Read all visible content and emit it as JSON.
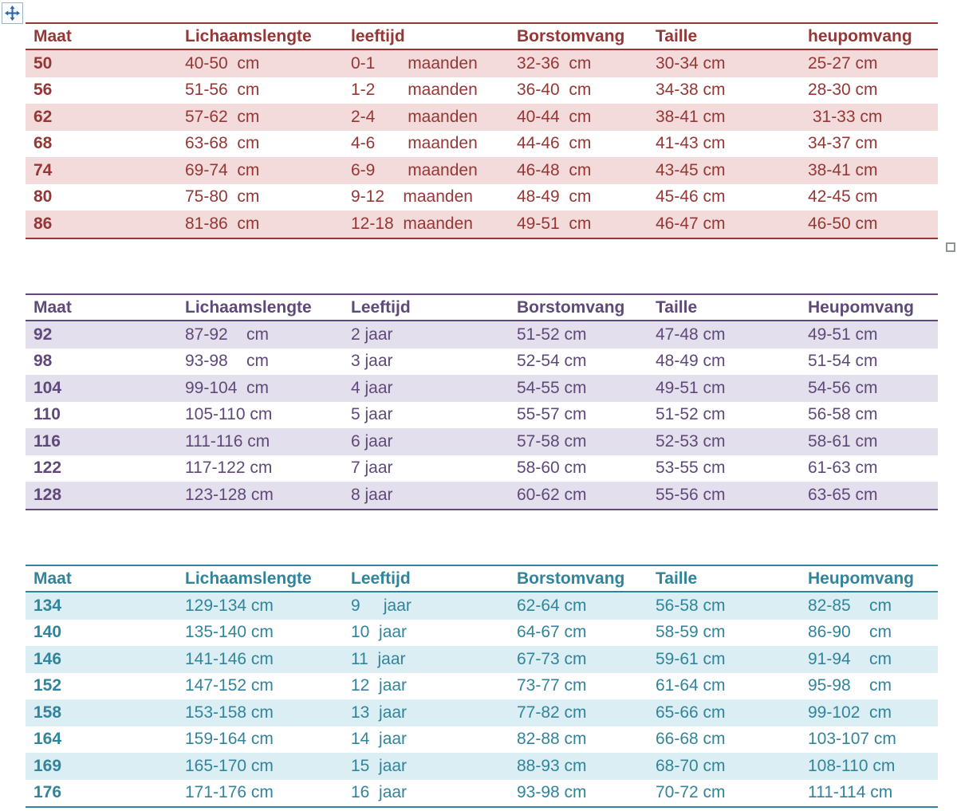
{
  "controls": {
    "move_handle_icon": "move-cross-icon",
    "move_icon_color": "#2e66a4",
    "text_cursor_color": "#101010",
    "resize_handle_border": "#8f9496"
  },
  "tables": [
    {
      "theme": {
        "accent": "#953735",
        "band_bg": "#f2dbda"
      },
      "headers": [
        "Maat",
        "Lichaamslengte",
        "leeftijd",
        "Borstomvang",
        "Taille",
        "heupomvang"
      ],
      "rows": [
        [
          "50",
          "40-50  cm",
          "0-1       maanden",
          "32-36  cm",
          "30-34 cm",
          "25-27 cm"
        ],
        [
          "56",
          "51-56  cm",
          "1-2       maanden",
          "36-40  cm",
          "34-38 cm",
          "28-30 cm"
        ],
        [
          "62",
          "57-62  cm",
          "2-4       maanden",
          "40-44  cm",
          "38-41 cm",
          " 31-33 cm"
        ],
        [
          "68",
          "63-68  cm",
          "4-6       maanden",
          "44-46  cm",
          "41-43 cm",
          "34-37 cm"
        ],
        [
          "74",
          "69-74  cm",
          "6-9       maanden",
          "46-48  cm",
          "43-45 cm",
          "38-41 cm"
        ],
        [
          "80",
          "75-80  cm",
          "9-12    maanden",
          "48-49  cm",
          "45-46 cm",
          "42-45 cm"
        ],
        [
          "86",
          "81-86  cm",
          "12-18  maanden",
          "49-51  cm",
          "46-47 cm",
          "46-50 cm"
        ]
      ]
    },
    {
      "theme": {
        "accent": "#5f497a",
        "band_bg": "#e4dfec"
      },
      "headers": [
        "Maat",
        "Lichaamslengte",
        "Leeftijd",
        "Borstomvang",
        "Taille",
        "Heupomvang"
      ],
      "rows": [
        [
          "92",
          "87-92    cm",
          "2 jaar",
          "51-52 cm",
          "47-48 cm",
          "49-51 cm"
        ],
        [
          "98",
          "93-98    cm",
          "3 jaar",
          "52-54 cm",
          "48-49 cm",
          "51-54 cm"
        ],
        [
          "104",
          "99-104  cm",
          "4 jaar",
          "54-55 cm",
          "49-51 cm",
          "54-56 cm"
        ],
        [
          "110",
          "105-110 cm",
          "5 jaar",
          "55-57 cm",
          "51-52 cm",
          "56-58 cm"
        ],
        [
          "116",
          "111-116 cm",
          "6 jaar",
          "57-58 cm",
          "52-53 cm",
          "58-61 cm"
        ],
        [
          "122",
          "117-122 cm",
          "7 jaar",
          "58-60 cm",
          "53-55 cm",
          "61-63 cm"
        ],
        [
          "128",
          "123-128 cm",
          "8 jaar",
          "60-62 cm",
          "55-56 cm",
          "63-65 cm"
        ]
      ]
    },
    {
      "theme": {
        "accent": "#31849b",
        "band_bg": "#daeef3"
      },
      "headers": [
        "Maat",
        "Lichaamslengte",
        "Leeftijd",
        "Borstomvang",
        "Taille",
        "Heupomvang"
      ],
      "rows": [
        [
          "134",
          "129-134 cm",
          "9     jaar",
          "62-64 cm",
          "56-58 cm",
          "82-85    cm"
        ],
        [
          "140",
          "135-140 cm",
          "10  jaar",
          "64-67 cm",
          "58-59 cm",
          "86-90    cm"
        ],
        [
          "146",
          "141-146 cm",
          "11  jaar",
          "67-73 cm",
          "59-61 cm",
          "91-94    cm"
        ],
        [
          "152",
          "147-152 cm",
          "12  jaar",
          "73-77 cm",
          "61-64 cm",
          "95-98    cm"
        ],
        [
          "158",
          "153-158 cm",
          "13  jaar",
          "77-82 cm",
          "65-66 cm",
          "99-102  cm"
        ],
        [
          "164",
          "159-164 cm",
          "14  jaar",
          "82-88 cm",
          "66-68 cm",
          "103-107 cm"
        ],
        [
          "169",
          "165-170 cm",
          "15  jaar",
          "88-93 cm",
          "68-70 cm",
          "108-110 cm"
        ],
        [
          "176",
          "171-176 cm",
          "16  jaar",
          "93-98 cm",
          "70-72 cm",
          "111-114 cm"
        ]
      ]
    }
  ]
}
